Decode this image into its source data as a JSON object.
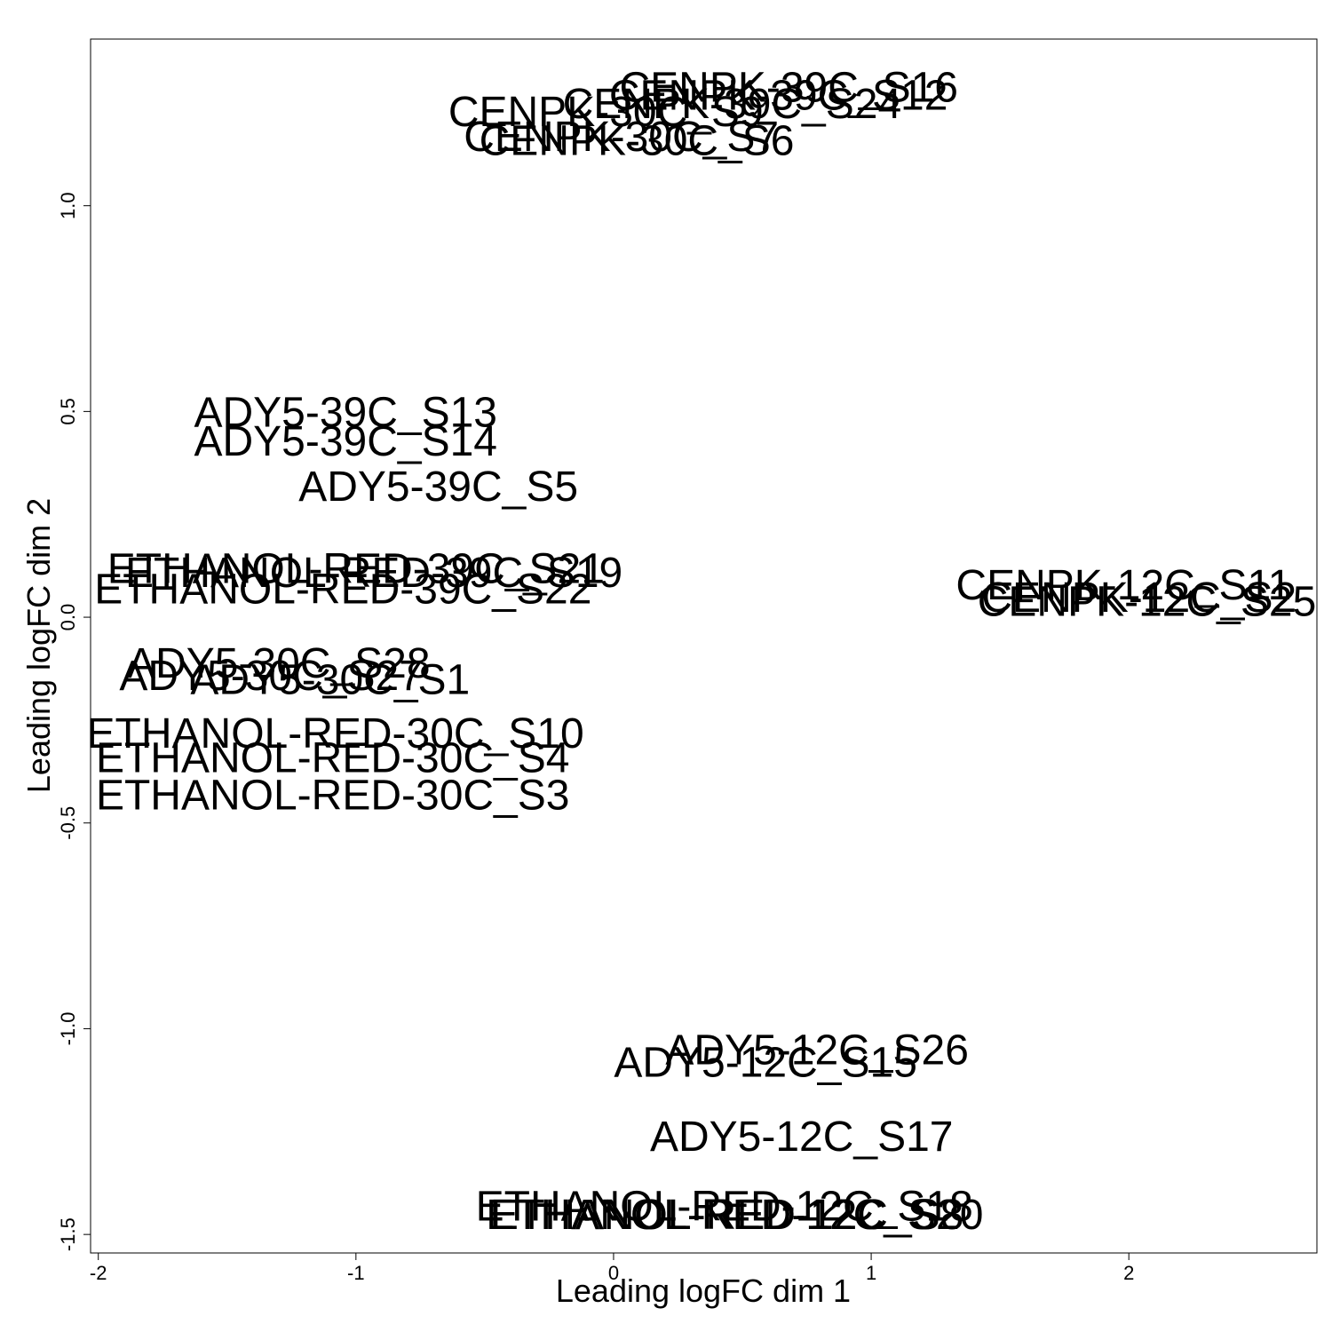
{
  "chart_data": {
    "type": "scatter",
    "title": "",
    "xlabel": "Leading logFC dim 1",
    "ylabel": "Leading logFC dim 2",
    "xlim": [
      -2.03,
      2.73
    ],
    "ylim": [
      -1.545,
      1.405
    ],
    "x_ticks": [
      -2,
      -1,
      0,
      1,
      2
    ],
    "x_tick_labels": [
      "-2",
      "-1",
      "0",
      "1",
      "2"
    ],
    "y_ticks": [
      -1.5,
      -1.0,
      -0.5,
      0.0,
      0.5,
      1.0
    ],
    "y_tick_labels": [
      "-1.5",
      "-1.0",
      "-0.5",
      "0.0",
      "0.5",
      "1.0"
    ],
    "grid": false,
    "markers": "text labels",
    "points": [
      {
        "label": "CENPK-39C_S16",
        "x": 0.68,
        "y": 1.29
      },
      {
        "label": "CENPK-39C_S12",
        "x": 0.64,
        "y": 1.27
      },
      {
        "label": "CENPK-39C_S24",
        "x": 0.46,
        "y": 1.25
      },
      {
        "label": "CENPK-30C_S9",
        "x": -0.03,
        "y": 1.23
      },
      {
        "label": "CENPK-30C_S7",
        "x": 0.03,
        "y": 1.17
      },
      {
        "label": "CENPK-30C_S6",
        "x": 0.09,
        "y": 1.16
      },
      {
        "label": "ADY5-39C_S13",
        "x": -1.04,
        "y": 0.5
      },
      {
        "label": "ADY5-39C_S14",
        "x": -1.04,
        "y": 0.43
      },
      {
        "label": "ADY5-39C_S5",
        "x": -0.68,
        "y": 0.32
      },
      {
        "label": "ETHANOL-RED-39C_S21",
        "x": -1.0,
        "y": 0.12
      },
      {
        "label": "ETHANOL-RED-39C_S19",
        "x": -0.93,
        "y": 0.11
      },
      {
        "label": "ETHANOL-RED-39C_S22",
        "x": -1.05,
        "y": 0.07
      },
      {
        "label": "CENPK-12C_S11",
        "x": 1.98,
        "y": 0.08
      },
      {
        "label": "CENPK-12C_S2",
        "x": 2.04,
        "y": 0.05
      },
      {
        "label": "CENPK-12C_S25",
        "x": 2.07,
        "y": 0.04
      },
      {
        "label": "ADY5-30C_S28",
        "x": -1.3,
        "y": -0.11
      },
      {
        "label": "ADY5-30C_S27",
        "x": -1.33,
        "y": -0.14
      },
      {
        "label": "ADY5-30C_S1",
        "x": -1.1,
        "y": -0.15
      },
      {
        "label": "ETHANOL-RED-30C_S10",
        "x": -1.08,
        "y": -0.28
      },
      {
        "label": "ETHANOL-RED-30C_S4",
        "x": -1.09,
        "y": -0.34
      },
      {
        "label": "ETHANOL-RED-30C_S3",
        "x": -1.09,
        "y": -0.43
      },
      {
        "label": "ADY5-12C_S26",
        "x": 0.79,
        "y": -1.05
      },
      {
        "label": "ADY5-12C_S15",
        "x": 0.59,
        "y": -1.08
      },
      {
        "label": "ADY5-12C_S17",
        "x": 0.73,
        "y": -1.26
      },
      {
        "label": "ETHANOL-RED-12C_S18",
        "x": 0.43,
        "y": -1.43
      },
      {
        "label": "ETHANOL-RED-12C_S8",
        "x": 0.44,
        "y": -1.45
      },
      {
        "label": "ETHANOL-RED-12C_S20",
        "x": 0.47,
        "y": -1.45
      }
    ]
  }
}
